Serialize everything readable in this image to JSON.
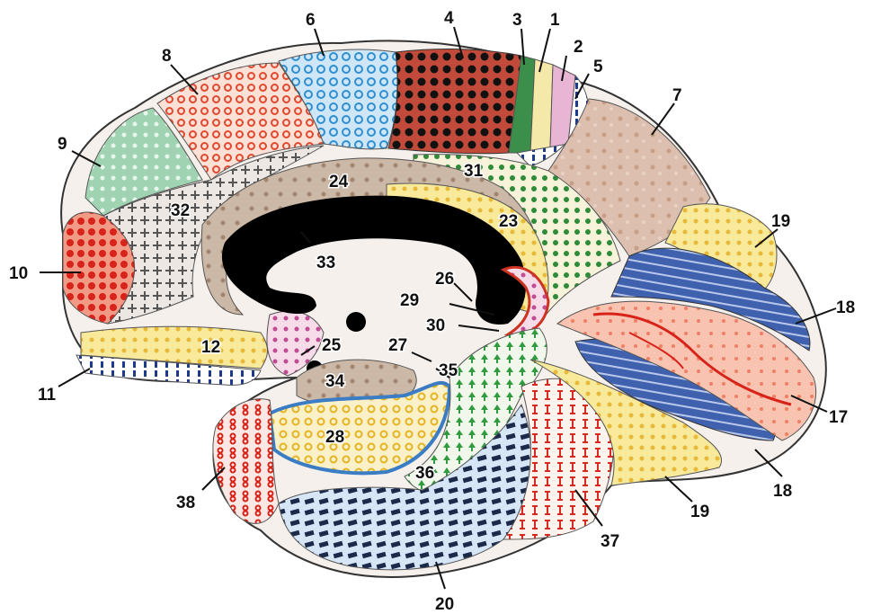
{
  "diagram": {
    "labels": [
      {
        "id": "ba-1",
        "text": "1"
      },
      {
        "id": "ba-2",
        "text": "2"
      },
      {
        "id": "ba-3",
        "text": "3"
      },
      {
        "id": "ba-4",
        "text": "4"
      },
      {
        "id": "ba-5",
        "text": "5"
      },
      {
        "id": "ba-6",
        "text": "6"
      },
      {
        "id": "ba-7",
        "text": "7"
      },
      {
        "id": "ba-8",
        "text": "8"
      },
      {
        "id": "ba-9",
        "text": "9"
      },
      {
        "id": "ba-10",
        "text": "10"
      },
      {
        "id": "ba-11",
        "text": "11"
      },
      {
        "id": "ba-12",
        "text": "12"
      },
      {
        "id": "ba-17",
        "text": "17"
      },
      {
        "id": "ba-18a",
        "text": "18"
      },
      {
        "id": "ba-18b",
        "text": "18"
      },
      {
        "id": "ba-19a",
        "text": "19"
      },
      {
        "id": "ba-19b",
        "text": "19"
      },
      {
        "id": "ba-20",
        "text": "20"
      },
      {
        "id": "ba-23",
        "text": "23"
      },
      {
        "id": "ba-24",
        "text": "24"
      },
      {
        "id": "ba-25",
        "text": "25"
      },
      {
        "id": "ba-26",
        "text": "26"
      },
      {
        "id": "ba-27",
        "text": "27"
      },
      {
        "id": "ba-28",
        "text": "28"
      },
      {
        "id": "ba-29",
        "text": "29"
      },
      {
        "id": "ba-30",
        "text": "30"
      },
      {
        "id": "ba-31",
        "text": "31"
      },
      {
        "id": "ba-32",
        "text": "32"
      },
      {
        "id": "ba-33",
        "text": "33"
      },
      {
        "id": "ba-34",
        "text": "34"
      },
      {
        "id": "ba-35",
        "text": "35"
      },
      {
        "id": "ba-36",
        "text": "36"
      },
      {
        "id": "ba-37",
        "text": "37"
      },
      {
        "id": "ba-38",
        "text": "38"
      }
    ]
  },
  "colors": {
    "outline": "#333333",
    "corpus_callosum": "#000000",
    "area_4": "#1a0a0a",
    "area_6": "#5aa9dc",
    "area_7": "#d9b7a6",
    "area_8": "#f4a47f",
    "area_9": "#7fc39a",
    "area_10": "#e63b2e",
    "area_11": "#2b4aa0",
    "area_17": "#f2a58c",
    "area_18": "#3a5ca8",
    "area_19": "#f5e27a",
    "area_20": "#9fc3e8",
    "area_23": "#f3dc8a",
    "area_24": "#c8b39a",
    "area_31": "#2e8b3e",
    "area_32": "#d9d9d9",
    "area_28": "#f0d060",
    "area_37": "#f7c6b6",
    "area_38": "#d9352b"
  }
}
